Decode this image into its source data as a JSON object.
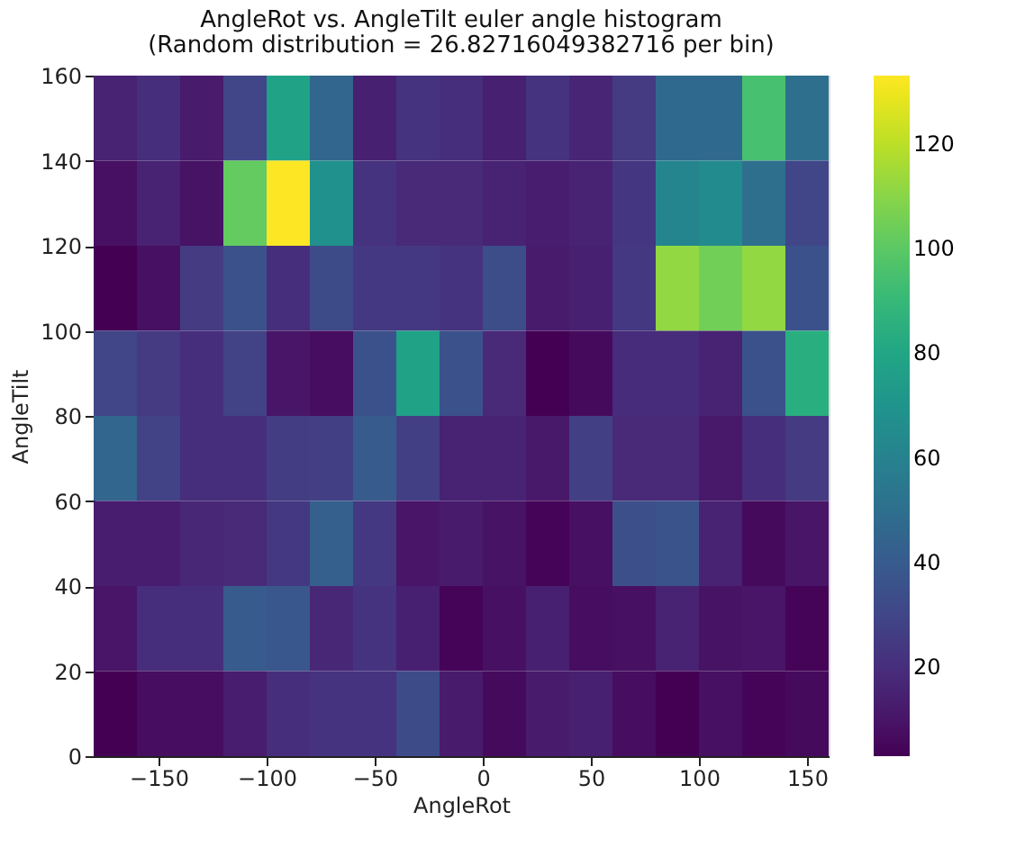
{
  "chart_data": {
    "type": "heatmap",
    "title": "AngleRot vs. AngleTilt euler angle histogram",
    "subtitle": "(Random distribution = 26.82716049382716 per bin)",
    "xlabel": "AngleRot",
    "ylabel": "AngleTilt",
    "cells": [
      [
        15,
        20,
        12,
        30,
        78,
        45,
        14,
        22,
        20,
        14,
        22,
        16,
        25,
        47,
        47,
        95,
        50
      ],
      [
        8,
        15,
        9,
        102,
        133,
        68,
        22,
        18,
        18,
        15,
        13,
        15,
        23,
        62,
        65,
        50,
        30
      ],
      [
        3,
        8,
        25,
        35,
        20,
        32,
        24,
        24,
        22,
        33,
        12,
        14,
        24,
        112,
        105,
        112,
        35
      ],
      [
        30,
        25,
        20,
        28,
        10,
        7,
        35,
        78,
        35,
        18,
        3,
        6,
        19,
        19,
        15,
        35,
        85
      ],
      [
        45,
        28,
        20,
        20,
        26,
        27,
        40,
        27,
        15,
        15,
        11,
        27,
        18,
        18,
        11,
        20,
        25
      ],
      [
        13,
        13,
        17,
        18,
        24,
        42,
        24,
        10,
        12,
        9,
        4,
        8,
        34,
        36,
        15,
        6,
        10
      ],
      [
        10,
        20,
        20,
        40,
        38,
        17,
        22,
        14,
        4,
        8,
        14,
        7,
        8,
        15,
        9,
        10,
        4
      ],
      [
        3,
        7,
        7,
        13,
        20,
        22,
        22,
        32,
        12,
        6,
        12,
        14,
        7,
        3,
        8,
        4,
        6
      ]
    ],
    "xlim": [
      -180,
      160
    ],
    "ylim": [
      0,
      160
    ],
    "xticks": [
      -150,
      -100,
      -50,
      0,
      50,
      100,
      150
    ],
    "yticks": [
      0,
      20,
      40,
      60,
      80,
      100,
      120,
      140,
      160
    ],
    "clim": [
      3,
      133
    ],
    "cticks": [
      20,
      40,
      60,
      80,
      100,
      120
    ],
    "grid": false
  }
}
